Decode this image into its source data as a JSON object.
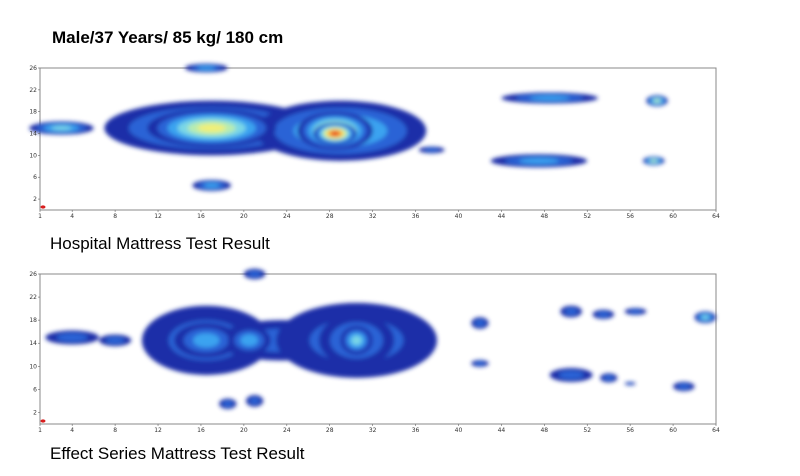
{
  "title": "Male/37 Years/ 85 kg/ 180 cm",
  "colors": {
    "scale": [
      "#1f2fa8",
      "#2a63d6",
      "#3ba3f0",
      "#7ad7e6",
      "#b8ecb0",
      "#f0f078",
      "#f7b640",
      "#f06a28",
      "#e02a1a"
    ],
    "frame": "#888888",
    "origin_dot": "#d81e1e"
  },
  "chart_data": [
    {
      "type": "heatmap",
      "title": "Hospital Mattress Test Result",
      "xlim": [
        1,
        64
      ],
      "ylim": [
        0,
        26
      ],
      "x_ticks": [
        1,
        4,
        8,
        12,
        16,
        20,
        24,
        28,
        32,
        36,
        40,
        44,
        48,
        52,
        56,
        60,
        64
      ],
      "y_ticks": [
        2,
        6,
        10,
        14,
        18,
        22,
        26
      ],
      "regions": [
        {
          "x": 17,
          "y": 15,
          "rx": 10,
          "ry": 5,
          "level": 3
        },
        {
          "x": 29,
          "y": 14.5,
          "rx": 8,
          "ry": 5.5,
          "level": 3
        },
        {
          "x": 17,
          "y": 15,
          "rx": 6,
          "ry": 3.5,
          "level": 5
        },
        {
          "x": 28.5,
          "y": 14.5,
          "rx": 3.5,
          "ry": 3.5,
          "level": 6
        },
        {
          "x": 28.5,
          "y": 14,
          "rx": 2,
          "ry": 2,
          "level": 8
        },
        {
          "x": 3,
          "y": 15,
          "rx": 3,
          "ry": 1.2,
          "level": 3
        },
        {
          "x": 16.5,
          "y": 26,
          "rx": 2,
          "ry": 0.8,
          "level": 2
        },
        {
          "x": 17,
          "y": 4.5,
          "rx": 1.8,
          "ry": 1,
          "level": 2
        },
        {
          "x": 37.5,
          "y": 11,
          "rx": 1.2,
          "ry": 0.6,
          "level": 1
        },
        {
          "x": 48.5,
          "y": 20.5,
          "rx": 4.5,
          "ry": 1,
          "level": 2
        },
        {
          "x": 47.5,
          "y": 9,
          "rx": 4.5,
          "ry": 1.2,
          "level": 2
        },
        {
          "x": 58.5,
          "y": 20,
          "rx": 1,
          "ry": 1,
          "level": 4
        },
        {
          "x": 58.2,
          "y": 9,
          "rx": 1,
          "ry": 0.8,
          "level": 4
        }
      ]
    },
    {
      "type": "heatmap",
      "title": "Effect Series Mattress Test Result",
      "xlim": [
        1,
        64
      ],
      "ylim": [
        0,
        26
      ],
      "x_ticks": [
        1,
        4,
        8,
        12,
        16,
        20,
        24,
        28,
        32,
        36,
        40,
        44,
        48,
        52,
        56,
        60,
        64
      ],
      "y_ticks": [
        2,
        6,
        10,
        14,
        18,
        22,
        26
      ],
      "regions": [
        {
          "x": 16.5,
          "y": 14.5,
          "rx": 6,
          "ry": 6,
          "level": 1
        },
        {
          "x": 23.5,
          "y": 14.5,
          "rx": 6,
          "ry": 3.5,
          "level": 1
        },
        {
          "x": 30.5,
          "y": 14.5,
          "rx": 7.5,
          "ry": 6.5,
          "level": 1
        },
        {
          "x": 16.5,
          "y": 14.5,
          "rx": 3,
          "ry": 3,
          "level": 2
        },
        {
          "x": 20.5,
          "y": 14.5,
          "rx": 2,
          "ry": 2.5,
          "level": 2
        },
        {
          "x": 30.5,
          "y": 14.5,
          "rx": 3.5,
          "ry": 4.5,
          "level": 2
        },
        {
          "x": 30.5,
          "y": 14.5,
          "rx": 1.5,
          "ry": 2.5,
          "level": 3
        },
        {
          "x": 4,
          "y": 15,
          "rx": 2.5,
          "ry": 1.2,
          "level": 1
        },
        {
          "x": 8,
          "y": 14.5,
          "rx": 1.5,
          "ry": 1,
          "level": 1
        },
        {
          "x": 21,
          "y": 26,
          "rx": 1,
          "ry": 0.9,
          "level": 1
        },
        {
          "x": 18.5,
          "y": 3.5,
          "rx": 0.8,
          "ry": 0.9,
          "level": 1
        },
        {
          "x": 21,
          "y": 4,
          "rx": 0.8,
          "ry": 1,
          "level": 1
        },
        {
          "x": 42,
          "y": 17.5,
          "rx": 0.8,
          "ry": 1,
          "level": 1
        },
        {
          "x": 42,
          "y": 10.5,
          "rx": 0.8,
          "ry": 0.6,
          "level": 1
        },
        {
          "x": 50.5,
          "y": 19.5,
          "rx": 1,
          "ry": 1,
          "level": 1
        },
        {
          "x": 53.5,
          "y": 19,
          "rx": 1,
          "ry": 0.8,
          "level": 1
        },
        {
          "x": 56.5,
          "y": 19.5,
          "rx": 1,
          "ry": 0.6,
          "level": 1
        },
        {
          "x": 50.5,
          "y": 8.5,
          "rx": 2,
          "ry": 1.2,
          "level": 1
        },
        {
          "x": 54,
          "y": 8,
          "rx": 0.8,
          "ry": 0.8,
          "level": 1
        },
        {
          "x": 56,
          "y": 7,
          "rx": 0.5,
          "ry": 0.3,
          "level": 1
        },
        {
          "x": 61,
          "y": 6.5,
          "rx": 1,
          "ry": 0.8,
          "level": 1
        },
        {
          "x": 63,
          "y": 18.5,
          "rx": 1,
          "ry": 1,
          "level": 3
        }
      ]
    }
  ]
}
